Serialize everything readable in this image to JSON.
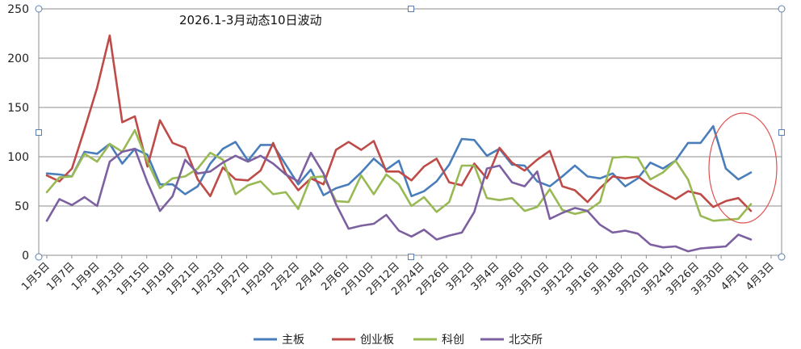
{
  "chart_data": {
    "type": "line",
    "title": "2026.1-3月动态10日波动",
    "xlabel": "",
    "ylabel": "",
    "ylim": [
      0,
      250
    ],
    "yticks": [
      0,
      50,
      100,
      150,
      200,
      250
    ],
    "grid": true,
    "legend_position": "bottom",
    "x_tick_labels": [
      "1月5日",
      "1月7日",
      "1月9日",
      "1月13日",
      "1月15日",
      "1月19日",
      "1月21日",
      "1月23日",
      "1月27日",
      "1月29日",
      "2月2日",
      "2月4日",
      "2月6日",
      "2月10日",
      "2月12日",
      "2月24日",
      "2月26日",
      "3月2日",
      "3月4日",
      "3月6日",
      "3月10日",
      "3月12日",
      "3月16日",
      "3月18日",
      "3月20日",
      "3月24日",
      "3月26日",
      "3月30日",
      "4月1日",
      "4月3日"
    ],
    "series": [
      {
        "name": "主板",
        "color": "#4a7ebb",
        "values": [
          83,
          82,
          80,
          105,
          103,
          113,
          93,
          108,
          102,
          72,
          72,
          62,
          70,
          93,
          108,
          115,
          96,
          112,
          112,
          92,
          72,
          87,
          61,
          68,
          72,
          84,
          98,
          87,
          96,
          60,
          65,
          75,
          92,
          118,
          117,
          101,
          108,
          92,
          91,
          75,
          70,
          80,
          91,
          80,
          78,
          83,
          70,
          78,
          94,
          88,
          96,
          114,
          114,
          131,
          88,
          77,
          84
        ]
      },
      {
        "name": "创业板",
        "color": "#be4b48",
        "values": [
          81,
          75,
          88,
          128,
          170,
          223,
          135,
          141,
          90,
          137,
          114,
          109,
          77,
          60,
          89,
          77,
          76,
          86,
          114,
          83,
          66,
          78,
          72,
          107,
          115,
          107,
          116,
          85,
          85,
          76,
          90,
          98,
          74,
          71,
          93,
          78,
          109,
          94,
          86,
          97,
          106,
          70,
          66,
          54,
          68,
          80,
          78,
          80,
          71,
          64,
          57,
          65,
          62,
          49,
          55,
          58,
          45
        ]
      },
      {
        "name": "科创",
        "color": "#98b954",
        "values": [
          64,
          79,
          80,
          103,
          95,
          113,
          105,
          127,
          95,
          68,
          78,
          80,
          88,
          104,
          97,
          62,
          71,
          75,
          62,
          64,
          47,
          79,
          80,
          55,
          54,
          81,
          62,
          82,
          72,
          50,
          59,
          44,
          54,
          91,
          91,
          58,
          56,
          58,
          45,
          49,
          67,
          46,
          42,
          45,
          54,
          99,
          100,
          99,
          77,
          84,
          96,
          77,
          40,
          35,
          36,
          37,
          52
        ]
      },
      {
        "name": "北交所",
        "color": "#7d60a0",
        "values": [
          35,
          57,
          51,
          59,
          50,
          95,
          105,
          108,
          74,
          45,
          60,
          97,
          83,
          85,
          94,
          101,
          95,
          101,
          93,
          82,
          75,
          104,
          83,
          52,
          27,
          30,
          32,
          41,
          25,
          19,
          26,
          16,
          20,
          23,
          44,
          88,
          91,
          74,
          70,
          85,
          37,
          43,
          48,
          45,
          31,
          23,
          25,
          22,
          11,
          8,
          9,
          4,
          7,
          8,
          9,
          21,
          16
        ]
      }
    ]
  },
  "annotation": {
    "type": "ellipse",
    "color": "#e05050"
  }
}
